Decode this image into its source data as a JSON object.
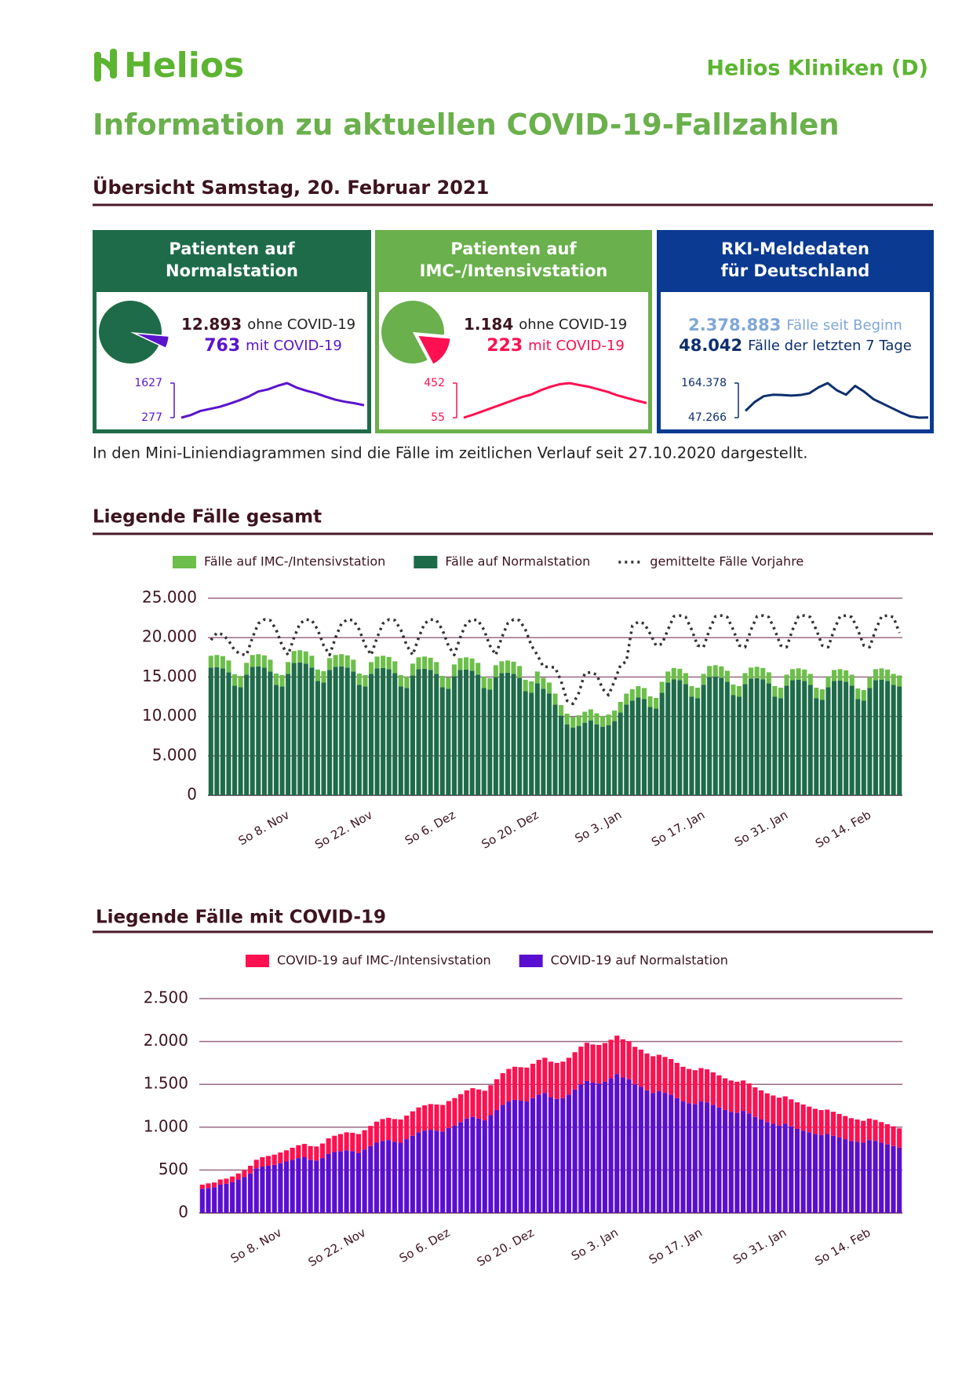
{
  "header": {
    "logo": "Helios",
    "org": "Helios Kliniken (D)",
    "title": "Information zu aktuellen COVID-19-Fallzahlen"
  },
  "overview": {
    "title": "Übersicht Samstag, 20. Februar 2021",
    "cards": [
      {
        "title": [
          "Patienten auf",
          "Normalstation"
        ],
        "color": "#1e6b4a",
        "pie": {
          "type": "pie",
          "values": [
            12893,
            763
          ],
          "value_labels": [
            "12.893",
            "763"
          ],
          "labels": [
            "ohne COVID-19",
            "mit COVID-19"
          ],
          "colors": [
            "#1e6b4a",
            "#5a14cc"
          ]
        },
        "sparkline": {
          "type": "line",
          "color": "#5a14cc",
          "ylim": [
            277,
            1627
          ],
          "yticks": [
            277,
            1627
          ],
          "values": [
            277,
            380,
            540,
            620,
            700,
            820,
            950,
            1100,
            1300,
            1380,
            1520,
            1627,
            1450,
            1330,
            1230,
            1100,
            980,
            900,
            840,
            763
          ]
        }
      },
      {
        "title": [
          "Patienten auf",
          "IMC-/Intensivstation"
        ],
        "color": "#6ab04c",
        "pie": {
          "type": "pie",
          "values": [
            1184,
            223
          ],
          "value_labels": [
            "1.184",
            "223"
          ],
          "labels": [
            "ohne COVID-19",
            "mit COVID-19"
          ],
          "colors": [
            "#6ab04c",
            "#ff1050"
          ]
        },
        "sparkline": {
          "type": "line",
          "color": "#ff1050",
          "ylim": [
            55,
            452
          ],
          "yticks": [
            55,
            452
          ],
          "values": [
            55,
            90,
            130,
            170,
            210,
            250,
            290,
            320,
            370,
            410,
            440,
            452,
            430,
            410,
            380,
            350,
            310,
            280,
            250,
            223
          ]
        }
      },
      {
        "title": [
          "RKI-Meldedaten",
          "für Deutschland"
        ],
        "color": "#0a3a91",
        "figures": {
          "values": [
            2378883,
            48042
          ],
          "value_labels": [
            "2.378.883",
            "48.042"
          ],
          "labels": [
            "Fälle seit Beginn",
            "Fälle der letzten 7 Tage"
          ],
          "colors": [
            "#7fa7d8",
            "#0d2f6e"
          ]
        },
        "sparkline": {
          "type": "line",
          "color": "#0d2f6e",
          "ylim": [
            47266,
            164378
          ],
          "yticks": [
            {
              "value": 47266,
              "label": "47.266"
            },
            {
              "value": 164378,
              "label": "164.378"
            }
          ],
          "values": [
            70000,
            100000,
            120000,
            125000,
            124000,
            122000,
            124000,
            130000,
            150000,
            164378,
            140000,
            125000,
            155000,
            135000,
            110000,
            95000,
            80000,
            65000,
            52000,
            47266,
            48042
          ]
        }
      }
    ],
    "note": "In den Mini-Liniendiagrammen sind die Fälle im zeitlichen Verlauf seit 27.10.2020 dargestellt."
  },
  "chart_data": [
    {
      "type": "bar",
      "title": "Liegende Fälle gesamt",
      "stacked": true,
      "grid": true,
      "categories": [
        null,
        null,
        null,
        null,
        null,
        null,
        null,
        null,
        null,
        null,
        null,
        null,
        "So 8. Nov",
        null,
        null,
        null,
        null,
        null,
        null,
        null,
        null,
        null,
        null,
        null,
        null,
        null,
        "So 22. Nov",
        null,
        null,
        null,
        null,
        null,
        null,
        null,
        null,
        null,
        null,
        null,
        null,
        null,
        "So 6. Dez",
        null,
        null,
        null,
        null,
        null,
        null,
        null,
        null,
        null,
        null,
        null,
        null,
        null,
        "So 20. Dez",
        null,
        null,
        null,
        null,
        null,
        null,
        null,
        null,
        null,
        null,
        null,
        null,
        null,
        "So 3. Jan",
        null,
        null,
        null,
        null,
        null,
        null,
        null,
        null,
        null,
        null,
        null,
        null,
        null,
        "So 17. Jan",
        null,
        null,
        null,
        null,
        null,
        null,
        null,
        null,
        null,
        null,
        null,
        null,
        null,
        "So 31. Jan",
        null,
        null,
        null,
        null,
        null,
        null,
        null,
        null,
        null,
        null,
        null,
        null,
        null,
        "So 14. Feb",
        null,
        null,
        null,
        null,
        null,
        null
      ],
      "ylim": [
        0,
        25000
      ],
      "yticks": [
        0,
        {
          "value": 5000,
          "label": "5.000"
        },
        {
          "value": 10000,
          "label": "10.000"
        },
        {
          "value": 15000,
          "label": "15.000"
        },
        {
          "value": 20000,
          "label": "20.000"
        },
        {
          "value": 25000,
          "label": "25.000"
        }
      ],
      "series": [
        {
          "name": "Fälle auf IMC-/Intensivstation",
          "color": "#6cbf4a",
          "values": [
            1500,
            1550,
            1550,
            1500,
            1450,
            1450,
            1500,
            1500,
            1550,
            1550,
            1500,
            1450,
            1450,
            1500,
            1500,
            1550,
            1550,
            1500,
            1450,
            1450,
            1500,
            1500,
            1550,
            1550,
            1500,
            1450,
            1450,
            1500,
            1500,
            1550,
            1550,
            1500,
            1450,
            1450,
            1500,
            1500,
            1550,
            1550,
            1500,
            1450,
            1450,
            1500,
            1500,
            1550,
            1550,
            1500,
            1450,
            1450,
            1500,
            1500,
            1550,
            1550,
            1500,
            1450,
            1450,
            1500,
            1400,
            1400,
            1400,
            1350,
            1350,
            1350,
            1350,
            1400,
            1400,
            1400,
            1350,
            1350,
            1350,
            1350,
            1400,
            1450,
            1450,
            1400,
            1350,
            1350,
            1400,
            1400,
            1450,
            1450,
            1400,
            1350,
            1350,
            1400,
            1400,
            1450,
            1450,
            1400,
            1350,
            1350,
            1400,
            1400,
            1450,
            1450,
            1400,
            1350,
            1350,
            1400,
            1400,
            1450,
            1450,
            1400,
            1350,
            1350,
            1400,
            1400,
            1450,
            1450,
            1400,
            1350,
            1350,
            1400,
            1400,
            1450,
            1450,
            1400,
            1400
          ]
        },
        {
          "name": "Fälle auf Normalstation",
          "color": "#1e6b4a",
          "values": [
            16200,
            16250,
            16100,
            15600,
            13900,
            13700,
            15300,
            16300,
            16350,
            16200,
            15700,
            14000,
            13800,
            15400,
            16800,
            16850,
            16700,
            16200,
            14500,
            14300,
            15900,
            16300,
            16350,
            16200,
            15700,
            14000,
            13800,
            15400,
            16100,
            16150,
            16000,
            15500,
            13800,
            13600,
            15200,
            16000,
            16050,
            15900,
            15400,
            13700,
            13500,
            15100,
            15900,
            15950,
            15800,
            15300,
            13600,
            13400,
            15000,
            15500,
            15550,
            15400,
            14900,
            13200,
            13000,
            14200,
            13500,
            12900,
            11500,
            10100,
            9000,
            8600,
            8800,
            9200,
            9500,
            9000,
            8700,
            8900,
            9400,
            10500,
            11500,
            12000,
            12400,
            12200,
            11200,
            11000,
            13000,
            14300,
            14700,
            14600,
            14100,
            12500,
            12300,
            14000,
            15000,
            15050,
            14900,
            14400,
            12700,
            12500,
            14100,
            14800,
            14850,
            14700,
            14200,
            12500,
            12300,
            13900,
            14600,
            14650,
            14500,
            14000,
            12300,
            12100,
            13700,
            14500,
            14550,
            14400,
            13900,
            12200,
            12000,
            13600,
            14600,
            14650,
            14500,
            14000,
            13800
          ]
        },
        {
          "name": "gemittelte Fälle Vorjahre",
          "type": "line",
          "dash": "dotted",
          "color": "#333333",
          "values": [
            19700,
            20600,
            20400,
            19600,
            18400,
            17900,
            17800,
            20000,
            21800,
            22300,
            22200,
            21000,
            19000,
            17800,
            20000,
            21800,
            22300,
            22200,
            21000,
            19000,
            17800,
            20000,
            21800,
            22300,
            22200,
            21000,
            19000,
            17800,
            20000,
            21800,
            22300,
            22200,
            21000,
            19000,
            17800,
            20000,
            21800,
            22300,
            22200,
            21000,
            19000,
            17800,
            20000,
            21800,
            22300,
            22200,
            21000,
            19000,
            17800,
            20000,
            21800,
            22300,
            22200,
            21000,
            19000,
            17800,
            16300,
            16300,
            16200,
            14500,
            12000,
            11600,
            13000,
            15500,
            15600,
            15300,
            13500,
            12700,
            14500,
            16500,
            17000,
            21500,
            22000,
            21800,
            20500,
            19000,
            19200,
            21000,
            22700,
            22800,
            22600,
            21000,
            19000,
            18800,
            21000,
            22700,
            22800,
            22600,
            21000,
            19000,
            18800,
            21000,
            22700,
            22800,
            22600,
            21000,
            19000,
            18800,
            21000,
            22700,
            22800,
            22600,
            21000,
            19000,
            18800,
            21000,
            22700,
            22800,
            22600,
            21000,
            19000,
            18800,
            21000,
            22700,
            22800,
            22600,
            20600
          ]
        }
      ]
    },
    {
      "type": "bar",
      "title": "Liegende Fälle mit COVID-19",
      "stacked": true,
      "grid": true,
      "categories": [
        null,
        null,
        null,
        null,
        null,
        null,
        null,
        null,
        null,
        null,
        null,
        null,
        "So 8. Nov",
        null,
        null,
        null,
        null,
        null,
        null,
        null,
        null,
        null,
        null,
        null,
        null,
        null,
        "So 22. Nov",
        null,
        null,
        null,
        null,
        null,
        null,
        null,
        null,
        null,
        null,
        null,
        null,
        null,
        "So 6. Dez",
        null,
        null,
        null,
        null,
        null,
        null,
        null,
        null,
        null,
        null,
        null,
        null,
        null,
        "So 20. Dez",
        null,
        null,
        null,
        null,
        null,
        null,
        null,
        null,
        null,
        null,
        null,
        null,
        null,
        "So 3. Jan",
        null,
        null,
        null,
        null,
        null,
        null,
        null,
        null,
        null,
        null,
        null,
        null,
        null,
        "So 17. Jan",
        null,
        null,
        null,
        null,
        null,
        null,
        null,
        null,
        null,
        null,
        null,
        null,
        null,
        "So 31. Jan",
        null,
        null,
        null,
        null,
        null,
        null,
        null,
        null,
        null,
        null,
        null,
        null,
        null,
        "So 14. Feb",
        null,
        null,
        null,
        null,
        null,
        null
      ],
      "ylim": [
        0,
        2500
      ],
      "yticks": [
        0,
        500,
        {
          "value": 1000,
          "label": "1.000"
        },
        {
          "value": 1500,
          "label": "1.500"
        },
        {
          "value": 2000,
          "label": "2.000"
        },
        {
          "value": 2500,
          "label": "2.500"
        }
      ],
      "series": [
        {
          "name": "COVID-19 auf IMC-/Intensivstation",
          "color": "#ff1050",
          "values": [
            50,
            55,
            55,
            60,
            60,
            65,
            70,
            80,
            90,
            100,
            110,
            115,
            120,
            125,
            130,
            140,
            150,
            155,
            160,
            165,
            170,
            180,
            190,
            200,
            210,
            215,
            220,
            225,
            235,
            245,
            255,
            260,
            265,
            270,
            275,
            285,
            290,
            295,
            300,
            305,
            310,
            315,
            320,
            325,
            330,
            335,
            340,
            345,
            350,
            360,
            370,
            380,
            385,
            390,
            395,
            400,
            405,
            410,
            415,
            420,
            425,
            430,
            435,
            440,
            445,
            445,
            450,
            452,
            450,
            448,
            445,
            440,
            438,
            435,
            430,
            428,
            425,
            420,
            415,
            410,
            405,
            400,
            395,
            390,
            385,
            380,
            375,
            370,
            365,
            360,
            355,
            350,
            345,
            340,
            335,
            330,
            325,
            320,
            315,
            310,
            305,
            300,
            295,
            290,
            285,
            280,
            275,
            270,
            265,
            260,
            255,
            250,
            245,
            240,
            235,
            230,
            223
          ]
        },
        {
          "name": "COVID-19 auf Normalstation",
          "color": "#5a0fd0",
          "values": [
            280,
            290,
            300,
            330,
            340,
            360,
            390,
            420,
            460,
            520,
            540,
            550,
            560,
            580,
            600,
            620,
            640,
            650,
            620,
            610,
            640,
            690,
            710,
            720,
            730,
            720,
            700,
            740,
            780,
            820,
            840,
            850,
            830,
            820,
            860,
            900,
            940,
            960,
            970,
            960,
            950,
            990,
            1020,
            1060,
            1100,
            1120,
            1100,
            1080,
            1140,
            1200,
            1260,
            1300,
            1320,
            1310,
            1300,
            1340,
            1380,
            1400,
            1350,
            1330,
            1340,
            1380,
            1440,
            1500,
            1540,
            1520,
            1510,
            1530,
            1570,
            1620,
            1580,
            1560,
            1500,
            1470,
            1430,
            1400,
            1420,
            1400,
            1380,
            1340,
            1300,
            1280,
            1270,
            1300,
            1290,
            1260,
            1230,
            1200,
            1180,
            1170,
            1190,
            1160,
            1120,
            1090,
            1060,
            1040,
            1020,
            1040,
            1010,
            980,
            960,
            940,
            920,
            910,
            920,
            900,
            880,
            860,
            840,
            830,
            820,
            850,
            840,
            820,
            800,
            780,
            763
          ]
        }
      ]
    }
  ]
}
